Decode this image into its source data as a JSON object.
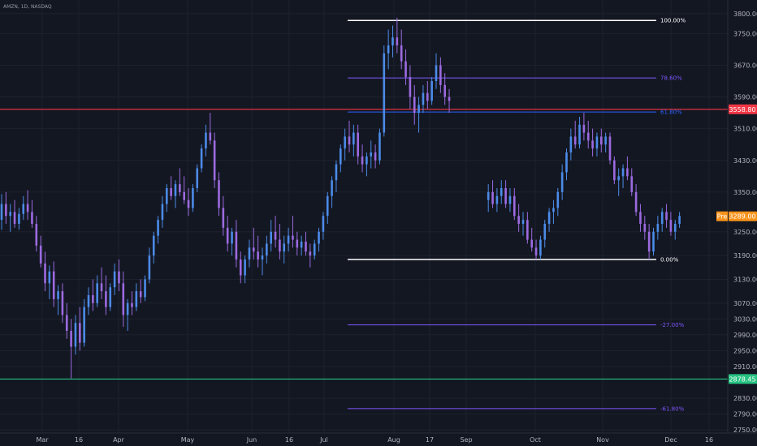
{
  "symbol_title": "AMZN, 1D, NASDAQ",
  "colors": {
    "background": "#131722",
    "grid": "#1e222d",
    "up_candle": "#4c8be8",
    "down_candle": "#9c6ae0",
    "resistance": "#f23645",
    "support": "#26c281",
    "fib_extreme": "#ffffff",
    "fib_purple": "#7e57ff",
    "fib_blue": "#2962ff",
    "price_tag": "#f7931a"
  },
  "chart_data": {
    "type": "candlestick",
    "y_axis": {
      "range": [
        2730,
        3810
      ],
      "ticks": [
        "3800.00",
        "3750.00",
        "3670.00",
        "3590.00",
        "3510.00",
        "3430.00",
        "3350.00",
        "3250.00",
        "3190.00",
        "3130.00",
        "3070.00",
        "3030.00",
        "2990.00",
        "2950.00",
        "2910.00",
        "2830.00",
        "2790.00",
        "2750.00"
      ]
    },
    "x_axis": {
      "ticks": [
        "Mar",
        "16",
        "Apr",
        "May",
        "Jun",
        "16",
        "Jul",
        "Aug",
        "17",
        "Sep",
        "Oct",
        "Nov",
        "Dec",
        "16"
      ]
    },
    "horizontal_levels": [
      {
        "name": "resistance",
        "price": 3558.8,
        "label": "3558.80"
      },
      {
        "name": "support",
        "price": 2878.45,
        "label": "2878.45"
      }
    ],
    "price_tag": {
      "label": "Pre",
      "value": "3289.00",
      "price": 3289.0
    },
    "fibonacci": [
      {
        "ratio_label": "100.00%",
        "price": 3783,
        "tone": "extreme"
      },
      {
        "ratio_label": "78.60%",
        "price": 3638,
        "tone": "purple"
      },
      {
        "ratio_label": "61.80%",
        "price": 3552,
        "tone": "blue"
      },
      {
        "ratio_label": "0.00%",
        "price": 3180,
        "tone": "extreme"
      },
      {
        "ratio_label": "-27.00%",
        "price": 3015,
        "tone": "purple"
      },
      {
        "ratio_label": "-61.80%",
        "price": 2804,
        "tone": "purple"
      }
    ],
    "candles": [
      {
        "o": 3280,
        "h": 3345,
        "l": 3255,
        "c": 3320
      },
      {
        "o": 3320,
        "h": 3350,
        "l": 3270,
        "c": 3290
      },
      {
        "o": 3290,
        "h": 3320,
        "l": 3250,
        "c": 3300
      },
      {
        "o": 3300,
        "h": 3330,
        "l": 3260,
        "c": 3270
      },
      {
        "o": 3270,
        "h": 3310,
        "l": 3255,
        "c": 3295
      },
      {
        "o": 3295,
        "h": 3340,
        "l": 3280,
        "c": 3320
      },
      {
        "o": 3320,
        "h": 3355,
        "l": 3280,
        "c": 3300
      },
      {
        "o": 3300,
        "h": 3330,
        "l": 3260,
        "c": 3270
      },
      {
        "o": 3270,
        "h": 3290,
        "l": 3200,
        "c": 3215
      },
      {
        "o": 3215,
        "h": 3240,
        "l": 3160,
        "c": 3170
      },
      {
        "o": 3170,
        "h": 3200,
        "l": 3100,
        "c": 3120
      },
      {
        "o": 3120,
        "h": 3165,
        "l": 3080,
        "c": 3150
      },
      {
        "o": 3150,
        "h": 3175,
        "l": 3060,
        "c": 3080
      },
      {
        "o": 3080,
        "h": 3115,
        "l": 3040,
        "c": 3100
      },
      {
        "o": 3100,
        "h": 3120,
        "l": 3020,
        "c": 3040
      },
      {
        "o": 3040,
        "h": 3070,
        "l": 2980,
        "c": 3000
      },
      {
        "o": 3000,
        "h": 3030,
        "l": 2880,
        "c": 2960
      },
      {
        "o": 2960,
        "h": 3040,
        "l": 2940,
        "c": 3020
      },
      {
        "o": 3020,
        "h": 3060,
        "l": 2950,
        "c": 2970
      },
      {
        "o": 2970,
        "h": 3080,
        "l": 2960,
        "c": 3060
      },
      {
        "o": 3060,
        "h": 3110,
        "l": 3040,
        "c": 3090
      },
      {
        "o": 3090,
        "h": 3130,
        "l": 3050,
        "c": 3070
      },
      {
        "o": 3070,
        "h": 3140,
        "l": 3060,
        "c": 3120
      },
      {
        "o": 3120,
        "h": 3160,
        "l": 3080,
        "c": 3100
      },
      {
        "o": 3100,
        "h": 3140,
        "l": 3040,
        "c": 3060
      },
      {
        "o": 3060,
        "h": 3120,
        "l": 3050,
        "c": 3110
      },
      {
        "o": 3110,
        "h": 3170,
        "l": 3090,
        "c": 3150
      },
      {
        "o": 3150,
        "h": 3180,
        "l": 3100,
        "c": 3120
      },
      {
        "o": 3120,
        "h": 3150,
        "l": 3010,
        "c": 3040
      },
      {
        "o": 3040,
        "h": 3080,
        "l": 3000,
        "c": 3070
      },
      {
        "o": 3070,
        "h": 3100,
        "l": 3040,
        "c": 3060
      },
      {
        "o": 3060,
        "h": 3120,
        "l": 3050,
        "c": 3100
      },
      {
        "o": 3100,
        "h": 3130,
        "l": 3070,
        "c": 3085
      },
      {
        "o": 3085,
        "h": 3140,
        "l": 3075,
        "c": 3130
      },
      {
        "o": 3130,
        "h": 3210,
        "l": 3120,
        "c": 3190
      },
      {
        "o": 3190,
        "h": 3250,
        "l": 3170,
        "c": 3240
      },
      {
        "o": 3240,
        "h": 3290,
        "l": 3220,
        "c": 3280
      },
      {
        "o": 3280,
        "h": 3340,
        "l": 3260,
        "c": 3320
      },
      {
        "o": 3320,
        "h": 3370,
        "l": 3300,
        "c": 3360
      },
      {
        "o": 3360,
        "h": 3390,
        "l": 3330,
        "c": 3340
      },
      {
        "o": 3340,
        "h": 3380,
        "l": 3310,
        "c": 3370
      },
      {
        "o": 3370,
        "h": 3410,
        "l": 3340,
        "c": 3350
      },
      {
        "o": 3350,
        "h": 3390,
        "l": 3320,
        "c": 3330
      },
      {
        "o": 3330,
        "h": 3360,
        "l": 3290,
        "c": 3310
      },
      {
        "o": 3310,
        "h": 3370,
        "l": 3300,
        "c": 3360
      },
      {
        "o": 3360,
        "h": 3420,
        "l": 3350,
        "c": 3410
      },
      {
        "o": 3410,
        "h": 3470,
        "l": 3400,
        "c": 3460
      },
      {
        "o": 3460,
        "h": 3520,
        "l": 3440,
        "c": 3500
      },
      {
        "o": 3500,
        "h": 3550,
        "l": 3470,
        "c": 3480
      },
      {
        "o": 3480,
        "h": 3500,
        "l": 3360,
        "c": 3380
      },
      {
        "o": 3380,
        "h": 3400,
        "l": 3290,
        "c": 3310
      },
      {
        "o": 3310,
        "h": 3340,
        "l": 3240,
        "c": 3260
      },
      {
        "o": 3260,
        "h": 3290,
        "l": 3200,
        "c": 3220
      },
      {
        "o": 3220,
        "h": 3260,
        "l": 3190,
        "c": 3250
      },
      {
        "o": 3250,
        "h": 3280,
        "l": 3160,
        "c": 3180
      },
      {
        "o": 3180,
        "h": 3200,
        "l": 3120,
        "c": 3140
      },
      {
        "o": 3140,
        "h": 3190,
        "l": 3120,
        "c": 3180
      },
      {
        "o": 3180,
        "h": 3230,
        "l": 3160,
        "c": 3210
      },
      {
        "o": 3210,
        "h": 3260,
        "l": 3180,
        "c": 3200
      },
      {
        "o": 3200,
        "h": 3240,
        "l": 3160,
        "c": 3180
      },
      {
        "o": 3180,
        "h": 3210,
        "l": 3140,
        "c": 3190
      },
      {
        "o": 3190,
        "h": 3240,
        "l": 3170,
        "c": 3220
      },
      {
        "o": 3220,
        "h": 3280,
        "l": 3200,
        "c": 3250
      },
      {
        "o": 3250,
        "h": 3290,
        "l": 3210,
        "c": 3230
      },
      {
        "o": 3230,
        "h": 3270,
        "l": 3180,
        "c": 3200
      },
      {
        "o": 3200,
        "h": 3240,
        "l": 3170,
        "c": 3220
      },
      {
        "o": 3220,
        "h": 3260,
        "l": 3200,
        "c": 3240
      },
      {
        "o": 3240,
        "h": 3290,
        "l": 3210,
        "c": 3230
      },
      {
        "o": 3230,
        "h": 3250,
        "l": 3190,
        "c": 3210
      },
      {
        "o": 3210,
        "h": 3240,
        "l": 3190,
        "c": 3225
      },
      {
        "o": 3225,
        "h": 3250,
        "l": 3190,
        "c": 3200
      },
      {
        "o": 3200,
        "h": 3220,
        "l": 3160,
        "c": 3190
      },
      {
        "o": 3190,
        "h": 3230,
        "l": 3180,
        "c": 3220
      },
      {
        "o": 3220,
        "h": 3260,
        "l": 3200,
        "c": 3250
      },
      {
        "o": 3250,
        "h": 3300,
        "l": 3230,
        "c": 3290
      },
      {
        "o": 3290,
        "h": 3350,
        "l": 3270,
        "c": 3340
      },
      {
        "o": 3340,
        "h": 3390,
        "l": 3310,
        "c": 3380
      },
      {
        "o": 3380,
        "h": 3430,
        "l": 3350,
        "c": 3420
      },
      {
        "o": 3420,
        "h": 3470,
        "l": 3400,
        "c": 3460
      },
      {
        "o": 3460,
        "h": 3510,
        "l": 3430,
        "c": 3490
      },
      {
        "o": 3490,
        "h": 3530,
        "l": 3450,
        "c": 3470
      },
      {
        "o": 3470,
        "h": 3520,
        "l": 3440,
        "c": 3500
      },
      {
        "o": 3500,
        "h": 3520,
        "l": 3420,
        "c": 3440
      },
      {
        "o": 3440,
        "h": 3470,
        "l": 3400,
        "c": 3420
      },
      {
        "o": 3420,
        "h": 3450,
        "l": 3390,
        "c": 3440
      },
      {
        "o": 3440,
        "h": 3480,
        "l": 3410,
        "c": 3450
      },
      {
        "o": 3450,
        "h": 3470,
        "l": 3410,
        "c": 3430
      },
      {
        "o": 3430,
        "h": 3510,
        "l": 3420,
        "c": 3500
      },
      {
        "o": 3500,
        "h": 3720,
        "l": 3490,
        "c": 3700
      },
      {
        "o": 3700,
        "h": 3760,
        "l": 3660,
        "c": 3720
      },
      {
        "o": 3720,
        "h": 3770,
        "l": 3690,
        "c": 3740
      },
      {
        "o": 3740,
        "h": 3790,
        "l": 3700,
        "c": 3720
      },
      {
        "o": 3720,
        "h": 3760,
        "l": 3660,
        "c": 3680
      },
      {
        "o": 3680,
        "h": 3710,
        "l": 3620,
        "c": 3640
      },
      {
        "o": 3640,
        "h": 3670,
        "l": 3560,
        "c": 3590
      },
      {
        "o": 3590,
        "h": 3620,
        "l": 3520,
        "c": 3550
      },
      {
        "o": 3550,
        "h": 3590,
        "l": 3500,
        "c": 3570
      },
      {
        "o": 3570,
        "h": 3620,
        "l": 3550,
        "c": 3600
      },
      {
        "o": 3600,
        "h": 3630,
        "l": 3560,
        "c": 3580
      },
      {
        "o": 3580,
        "h": 3640,
        "l": 3570,
        "c": 3630
      },
      {
        "o": 3630,
        "h": 3700,
        "l": 3610,
        "c": 3670
      },
      {
        "o": 3670,
        "h": 3690,
        "l": 3600,
        "c": 3620
      },
      {
        "o": 3620,
        "h": 3650,
        "l": 3570,
        "c": 3590
      },
      {
        "o": 3590,
        "h": 3610,
        "l": 3550,
        "c": 3580
      },
      null,
      null,
      null,
      null,
      null,
      null,
      null,
      null,
      {
        "o": 3330,
        "h": 3370,
        "l": 3300,
        "c": 3350
      },
      {
        "o": 3350,
        "h": 3380,
        "l": 3310,
        "c": 3320
      },
      {
        "o": 3320,
        "h": 3360,
        "l": 3300,
        "c": 3340
      },
      {
        "o": 3340,
        "h": 3380,
        "l": 3320,
        "c": 3360
      },
      {
        "o": 3360,
        "h": 3380,
        "l": 3310,
        "c": 3320
      },
      {
        "o": 3320,
        "h": 3360,
        "l": 3300,
        "c": 3340
      },
      {
        "o": 3340,
        "h": 3360,
        "l": 3280,
        "c": 3290
      },
      {
        "o": 3290,
        "h": 3320,
        "l": 3250,
        "c": 3270
      },
      {
        "o": 3270,
        "h": 3300,
        "l": 3240,
        "c": 3280
      },
      {
        "o": 3280,
        "h": 3300,
        "l": 3220,
        "c": 3230
      },
      {
        "o": 3230,
        "h": 3260,
        "l": 3200,
        "c": 3210
      },
      {
        "o": 3210,
        "h": 3230,
        "l": 3180,
        "c": 3190
      },
      {
        "o": 3190,
        "h": 3240,
        "l": 3180,
        "c": 3230
      },
      {
        "o": 3230,
        "h": 3280,
        "l": 3210,
        "c": 3270
      },
      {
        "o": 3270,
        "h": 3310,
        "l": 3250,
        "c": 3300
      },
      {
        "o": 3300,
        "h": 3330,
        "l": 3270,
        "c": 3310
      },
      {
        "o": 3310,
        "h": 3360,
        "l": 3290,
        "c": 3350
      },
      {
        "o": 3350,
        "h": 3420,
        "l": 3330,
        "c": 3400
      },
      {
        "o": 3400,
        "h": 3460,
        "l": 3380,
        "c": 3450
      },
      {
        "o": 3450,
        "h": 3510,
        "l": 3430,
        "c": 3490
      },
      {
        "o": 3490,
        "h": 3530,
        "l": 3460,
        "c": 3470
      },
      {
        "o": 3470,
        "h": 3540,
        "l": 3460,
        "c": 3520
      },
      {
        "o": 3520,
        "h": 3550,
        "l": 3480,
        "c": 3500
      },
      {
        "o": 3500,
        "h": 3530,
        "l": 3460,
        "c": 3480
      },
      {
        "o": 3480,
        "h": 3510,
        "l": 3440,
        "c": 3460
      },
      {
        "o": 3460,
        "h": 3500,
        "l": 3440,
        "c": 3490
      },
      {
        "o": 3490,
        "h": 3510,
        "l": 3450,
        "c": 3470
      },
      {
        "o": 3470,
        "h": 3500,
        "l": 3450,
        "c": 3490
      },
      {
        "o": 3490,
        "h": 3500,
        "l": 3420,
        "c": 3430
      },
      {
        "o": 3430,
        "h": 3440,
        "l": 3370,
        "c": 3380
      },
      {
        "o": 3380,
        "h": 3410,
        "l": 3340,
        "c": 3390
      },
      {
        "o": 3390,
        "h": 3420,
        "l": 3360,
        "c": 3410
      },
      {
        "o": 3410,
        "h": 3440,
        "l": 3380,
        "c": 3390
      },
      {
        "o": 3390,
        "h": 3410,
        "l": 3340,
        "c": 3350
      },
      {
        "o": 3350,
        "h": 3370,
        "l": 3290,
        "c": 3300
      },
      {
        "o": 3300,
        "h": 3320,
        "l": 3250,
        "c": 3270
      },
      {
        "o": 3270,
        "h": 3290,
        "l": 3230,
        "c": 3250
      },
      {
        "o": 3250,
        "h": 3270,
        "l": 3180,
        "c": 3200
      },
      {
        "o": 3200,
        "h": 3260,
        "l": 3190,
        "c": 3250
      },
      {
        "o": 3250,
        "h": 3290,
        "l": 3230,
        "c": 3270
      },
      {
        "o": 3270,
        "h": 3310,
        "l": 3250,
        "c": 3300
      },
      {
        "o": 3300,
        "h": 3320,
        "l": 3260,
        "c": 3280
      },
      {
        "o": 3280,
        "h": 3300,
        "l": 3240,
        "c": 3250
      },
      {
        "o": 3250,
        "h": 3280,
        "l": 3230,
        "c": 3270
      },
      {
        "o": 3270,
        "h": 3300,
        "l": 3260,
        "c": 3290
      }
    ]
  }
}
